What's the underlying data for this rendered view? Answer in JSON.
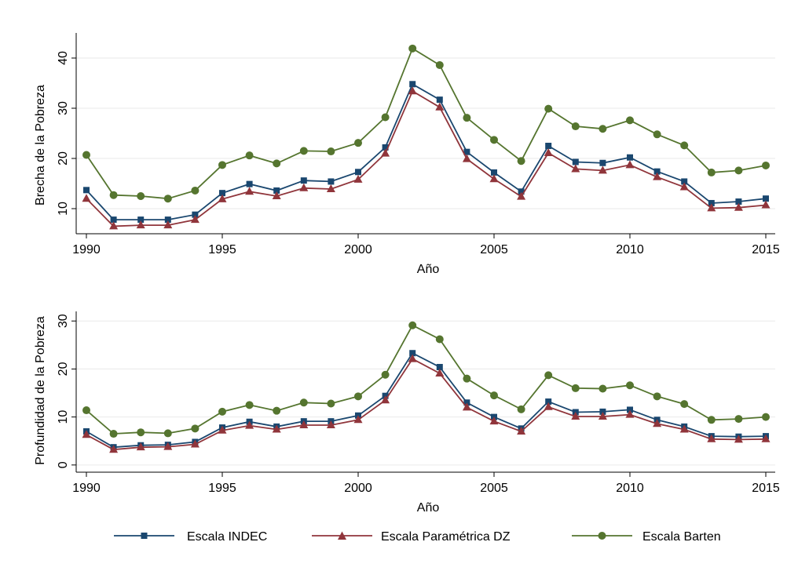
{
  "colors": {
    "indec": "#1a476f",
    "dz": "#90353b",
    "barten": "#55752f",
    "grid": "#eaeaea"
  },
  "legend": [
    {
      "name": "Escala INDEC",
      "marker": "square",
      "color": "#1a476f"
    },
    {
      "name": "Escala Paramétrica DZ",
      "marker": "triangle",
      "color": "#90353b"
    },
    {
      "name": "Escala Barten",
      "marker": "circle",
      "color": "#55752f"
    }
  ],
  "chart_data": [
    {
      "type": "line",
      "title": "",
      "xlabel": "Año",
      "ylabel": "Brecha de la Pobreza",
      "x": [
        1990,
        1991,
        1992,
        1993,
        1994,
        1995,
        1996,
        1997,
        1998,
        1999,
        2000,
        2001,
        2002,
        2003,
        2004,
        2005,
        2006,
        2007,
        2008,
        2009,
        2010,
        2011,
        2012,
        2013,
        2014,
        2015
      ],
      "xlim": [
        1990,
        2015
      ],
      "ylim": [
        5,
        45
      ],
      "xticks": [
        1990,
        1995,
        2000,
        2005,
        2010,
        2015
      ],
      "yticks": [
        10,
        20,
        30,
        40
      ],
      "grid": true,
      "series": [
        {
          "name": "Escala INDEC",
          "values": [
            13.7,
            7.8,
            7.8,
            7.8,
            8.8,
            13.1,
            14.9,
            13.6,
            15.6,
            15.4,
            17.3,
            22.2,
            34.8,
            31.7,
            21.3,
            17.2,
            13.4,
            22.5,
            19.3,
            19.1,
            20.2,
            17.4,
            15.4,
            11.1,
            11.4,
            12.0
          ]
        },
        {
          "name": "Escala Paramétrica DZ",
          "values": [
            12.0,
            6.5,
            6.7,
            6.7,
            7.8,
            11.9,
            13.4,
            12.5,
            14.1,
            13.9,
            15.8,
            21.0,
            33.4,
            30.2,
            19.9,
            15.9,
            12.4,
            21.1,
            17.9,
            17.6,
            18.7,
            16.3,
            14.3,
            10.1,
            10.2,
            10.7
          ]
        },
        {
          "name": "Escala Barten",
          "values": [
            20.7,
            12.7,
            12.5,
            12.0,
            13.6,
            18.7,
            20.6,
            19.0,
            21.5,
            21.4,
            23.1,
            28.2,
            41.9,
            38.6,
            28.1,
            23.7,
            19.5,
            29.9,
            26.4,
            25.9,
            27.6,
            24.8,
            22.6,
            17.2,
            17.6,
            18.6
          ]
        }
      ]
    },
    {
      "type": "line",
      "title": "",
      "xlabel": "Año",
      "ylabel": "Profundidad de la Pobreza",
      "x": [
        1990,
        1991,
        1992,
        1993,
        1994,
        1995,
        1996,
        1997,
        1998,
        1999,
        2000,
        2001,
        2002,
        2003,
        2004,
        2005,
        2006,
        2007,
        2008,
        2009,
        2010,
        2011,
        2012,
        2013,
        2014,
        2015
      ],
      "xlim": [
        1990,
        2015
      ],
      "ylim": [
        -1.5,
        32
      ],
      "xticks": [
        1990,
        1995,
        2000,
        2005,
        2010,
        2015
      ],
      "yticks": [
        0,
        10,
        20,
        30
      ],
      "grid": true,
      "series": [
        {
          "name": "Escala INDEC",
          "values": [
            7.0,
            3.7,
            4.1,
            4.2,
            4.8,
            7.8,
            9.0,
            8.0,
            9.1,
            9.1,
            10.3,
            14.4,
            23.3,
            20.4,
            13.0,
            10.0,
            7.6,
            13.2,
            11.0,
            11.1,
            11.5,
            9.4,
            8.0,
            6.0,
            5.9,
            6.0
          ]
        },
        {
          "name": "Escala Paramétrica DZ",
          "values": [
            6.3,
            3.2,
            3.7,
            3.8,
            4.3,
            7.2,
            8.2,
            7.4,
            8.3,
            8.3,
            9.4,
            13.5,
            22.1,
            19.1,
            12.0,
            9.1,
            7.0,
            12.1,
            10.1,
            10.1,
            10.5,
            8.6,
            7.4,
            5.4,
            5.3,
            5.4
          ]
        },
        {
          "name": "Escala Barten",
          "values": [
            11.4,
            6.5,
            6.8,
            6.6,
            7.6,
            11.1,
            12.5,
            11.3,
            13.0,
            12.8,
            14.3,
            18.8,
            29.1,
            26.2,
            18.0,
            14.5,
            11.6,
            18.7,
            16.0,
            15.9,
            16.6,
            14.3,
            12.7,
            9.4,
            9.6,
            10.0
          ]
        }
      ]
    }
  ]
}
